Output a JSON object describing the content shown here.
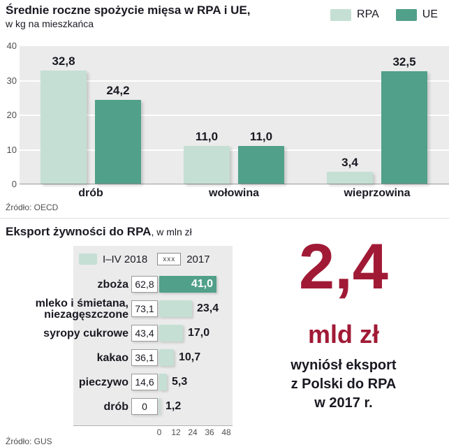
{
  "colors": {
    "light_green": "#c5dfd4",
    "teal": "#51a089",
    "panel_gray": "#ebebeb",
    "red": "#a11a35",
    "ink": "#191922",
    "muted": "#4f4f4f"
  },
  "top_chart": {
    "title": "Średnie roczne spożycie mięsa w RPA i UE,",
    "subtitle": "w kg na mieszkańca",
    "source": "Źródło: OECD"
  },
  "bottom_chart": {
    "title": "Eksport żywności do RPA",
    "title_suffix": ", w mln zł",
    "pattern_label": "xxx",
    "source": "Źródło: GUS"
  },
  "highlight": {
    "value": "2,4",
    "unit": "mld zł",
    "lines": [
      "wyniósł eksport",
      "z Polski do RPA",
      "w 2017 r."
    ]
  },
  "chart_data": [
    {
      "type": "bar",
      "orientation": "vertical",
      "title": "Średnie roczne spożycie mięsa w RPA i UE",
      "ylabel": "kg na mieszkańca",
      "categories": [
        "drób",
        "wołowina",
        "wieprzowina"
      ],
      "series": [
        {
          "name": "RPA",
          "values": [
            32.8,
            11.0,
            3.4
          ],
          "color": "#c5dfd4"
        },
        {
          "name": "UE",
          "values": [
            24.2,
            11.0,
            32.5
          ],
          "color": "#51a089"
        }
      ],
      "ylim": [
        0,
        40
      ],
      "y_ticks": [
        0,
        10,
        20,
        30,
        40
      ],
      "grid": true,
      "legend_position": "top-right",
      "source": "OECD"
    },
    {
      "type": "bar",
      "orientation": "horizontal",
      "title": "Eksport żywności do RPA",
      "xlabel": "mln zł",
      "categories": [
        "zboża",
        "mleko i śmietana, niezagęszczone",
        "syropy cukrowe",
        "kakao",
        "pieczywo",
        "drób"
      ],
      "category_lines": [
        [
          "zboża"
        ],
        [
          "mleko i śmietana,",
          "niezagęszczone"
        ],
        [
          "syropy cukrowe"
        ],
        [
          "kakao"
        ],
        [
          "pieczywo"
        ],
        [
          "drób"
        ]
      ],
      "series": [
        {
          "name": "I–IV 2018",
          "values": [
            41.0,
            23.4,
            17.0,
            10.7,
            5.3,
            1.2
          ],
          "color": "#c5dfd4"
        },
        {
          "name": "2017",
          "values": [
            62.8,
            73.1,
            43.4,
            36.1,
            14.6,
            0
          ],
          "style": "boxed-value"
        }
      ],
      "xlim": [
        0,
        48
      ],
      "x_ticks": [
        0,
        12,
        24,
        36,
        48
      ],
      "emphasis_category": "zboża",
      "emphasis_color": "#51a089",
      "legend_position": "top",
      "source": "GUS"
    }
  ]
}
